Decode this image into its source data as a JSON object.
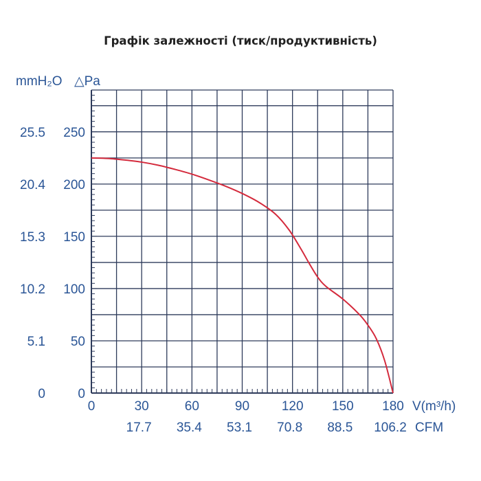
{
  "title": "Графік залежності (тиск/продуктивність)",
  "colors": {
    "axis_text": "#2a5596",
    "grid": "#2d3a5a",
    "curve": "#d42a3c",
    "title": "#222222"
  },
  "chart_data": {
    "type": "line",
    "title": "Графік залежності (тиск/продуктивність)",
    "x_axis": {
      "label": "V(m³/h)",
      "ticks": [
        0,
        30,
        60,
        90,
        120,
        150,
        180
      ],
      "range": [
        0,
        180
      ]
    },
    "x2_axis": {
      "label": "CFM",
      "ticks": [
        "17.7",
        "35.4",
        "53.1",
        "70.8",
        "88.5",
        "106.2"
      ]
    },
    "y_axis": {
      "label": "△Pa",
      "ticks": [
        0,
        50,
        100,
        150,
        200,
        250
      ],
      "range": [
        0,
        290
      ]
    },
    "y2_axis": {
      "label": "mmH₂O",
      "ticks": [
        "0",
        "5.1",
        "10.2",
        "15.3",
        "20.4",
        "25.5"
      ]
    },
    "grid": true,
    "series": [
      {
        "x": [
          0,
          10,
          20,
          30,
          40,
          50,
          60,
          70,
          80,
          90,
          100,
          110,
          118,
          125,
          130,
          135,
          140,
          150,
          160,
          165,
          170,
          175,
          180
        ],
        "y": [
          225,
          224.5,
          223,
          221,
          218,
          214,
          209.5,
          204,
          198,
          191,
          182.5,
          171,
          156,
          138,
          124,
          111,
          102,
          90,
          75,
          65,
          52,
          31,
          0
        ]
      }
    ]
  }
}
